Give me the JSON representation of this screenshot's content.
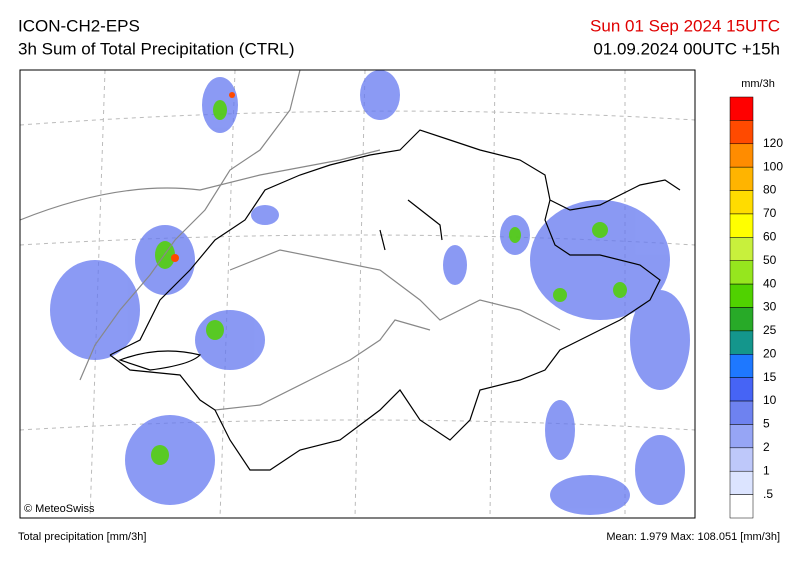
{
  "header": {
    "model": "ICON-CH2-EPS",
    "product": "3h Sum of Total Precipitation (CTRL)",
    "valid_time": "Sun 01 Sep 2024 15UTC",
    "run_time": "01.09.2024 00UTC +15h"
  },
  "map": {
    "copyright": "© MeteoSwiss"
  },
  "legend": {
    "unit": "mm/3h",
    "colors": [
      "#ff0000",
      "#ff4a00",
      "#ff8c00",
      "#ffb400",
      "#ffdc00",
      "#ffff00",
      "#c8f03c",
      "#96e61e",
      "#50d200",
      "#28aa28",
      "#14968c",
      "#1e78ff",
      "#4664f5",
      "#6e82f0",
      "#96a5f5",
      "#bec8fa",
      "#dce4ff",
      "#ffffff"
    ],
    "labels": [
      "120",
      "100",
      "80",
      "70",
      "60",
      "50",
      "40",
      "30",
      "25",
      "20",
      "15",
      "10",
      "5",
      "2",
      "1",
      ".5"
    ]
  },
  "footer": {
    "left": "Total precipitation [mm/3h]",
    "right": "Mean:   1.979 Max: 108.051 [mm/3h]"
  }
}
